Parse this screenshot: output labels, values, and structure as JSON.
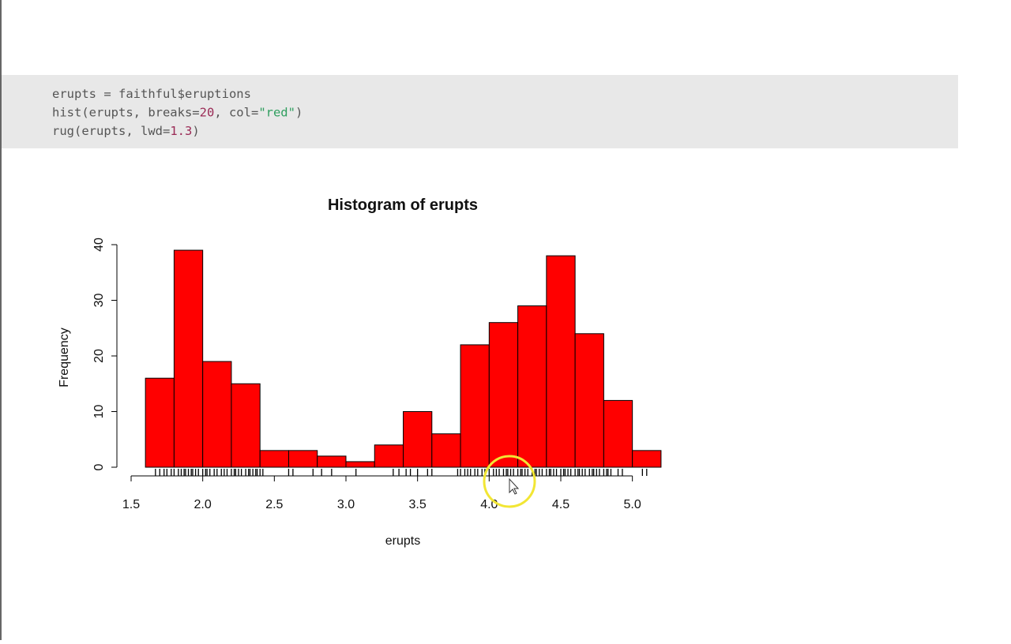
{
  "code": {
    "lines": [
      [
        {
          "text": "erupts = faithful$eruptions",
          "color": "#555555"
        }
      ],
      [
        {
          "text": "hist(erupts, breaks=",
          "color": "#555555"
        },
        {
          "text": "20",
          "color": "#9a2a55"
        },
        {
          "text": ", col=",
          "color": "#555555"
        },
        {
          "text": "\"red\"",
          "color": "#2e9e5e"
        },
        {
          "text": ")",
          "color": "#555555"
        }
      ],
      [
        {
          "text": "rug(erupts, lwd=",
          "color": "#555555"
        },
        {
          "text": "1.3",
          "color": "#9a2a55"
        },
        {
          "text": ")",
          "color": "#555555"
        }
      ]
    ]
  },
  "chart_data": {
    "type": "histogram",
    "title": "Histogram of erupts",
    "x_label": "erupts",
    "y_label": "Frequency",
    "bins": [
      1.6,
      1.8,
      2.0,
      2.2,
      2.4,
      2.6,
      2.8,
      3.0,
      3.2,
      3.4,
      3.6,
      3.8,
      4.0,
      4.2,
      4.4,
      4.6,
      4.8,
      5.0,
      5.2
    ],
    "counts": [
      16,
      39,
      19,
      15,
      3,
      3,
      2,
      1,
      4,
      10,
      6,
      22,
      26,
      29,
      38,
      24,
      12,
      3
    ],
    "color": "#ff0000",
    "xlim": [
      1.5,
      5.2
    ],
    "xticks": [
      1.5,
      {
        "value": 2,
        "label": "2.0"
      },
      2.5,
      {
        "value": 3,
        "label": "3.0"
      },
      3.5,
      {
        "value": 4,
        "label": "4.0"
      },
      4.5,
      {
        "value": 5,
        "label": "5.0"
      }
    ],
    "ylim": [
      0,
      40
    ],
    "yticks": [
      0,
      10,
      20,
      30,
      40
    ],
    "rug": [
      1.67,
      1.7,
      1.73,
      1.75,
      1.78,
      1.8,
      1.83,
      1.85,
      1.87,
      1.88,
      1.9,
      1.92,
      1.93,
      1.95,
      1.97,
      2.0,
      2.02,
      2.03,
      2.05,
      2.08,
      2.1,
      2.13,
      2.15,
      2.17,
      2.2,
      2.22,
      2.23,
      2.25,
      2.27,
      2.3,
      2.32,
      2.33,
      2.35,
      2.37,
      2.38,
      2.4,
      2.42,
      2.6,
      2.63,
      2.77,
      2.83,
      2.9,
      3.07,
      3.33,
      3.37,
      3.42,
      3.45,
      3.5,
      3.57,
      3.6,
      3.78,
      3.8,
      3.83,
      3.85,
      3.87,
      3.9,
      3.92,
      3.95,
      3.97,
      4.0,
      4.03,
      4.05,
      4.07,
      4.1,
      4.12,
      4.13,
      4.15,
      4.17,
      4.2,
      4.22,
      4.23,
      4.25,
      4.27,
      4.3,
      4.32,
      4.33,
      4.35,
      4.37,
      4.4,
      4.42,
      4.43,
      4.45,
      4.47,
      4.5,
      4.52,
      4.53,
      4.55,
      4.57,
      4.6,
      4.62,
      4.63,
      4.65,
      4.67,
      4.7,
      4.72,
      4.73,
      4.75,
      4.77,
      4.8,
      4.82,
      4.83,
      4.85,
      4.9,
      4.93,
      5.07,
      5.1
    ]
  }
}
